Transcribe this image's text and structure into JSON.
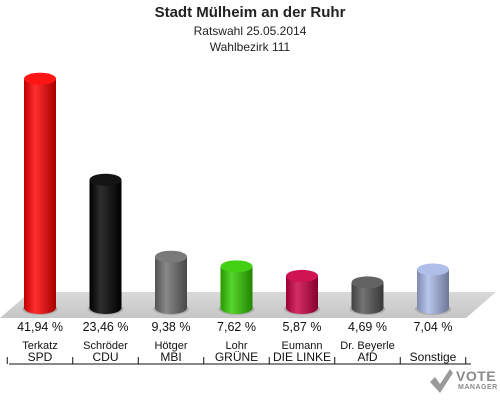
{
  "header": {
    "title": "Stadt Mülheim an der Ruhr",
    "subtitle": "Ratswahl 25.05.2014",
    "district": "Wahlbezirk 111"
  },
  "logo": {
    "line1": "VOTE",
    "line2": "MANAGER"
  },
  "chart_data": {
    "type": "bar",
    "title": "Stadt Mülheim an der Ruhr",
    "subtitle": "Ratswahl 25.05.2014 / Wahlbezirk 111",
    "ylim": [
      0,
      45
    ],
    "grid": false,
    "legend": "none",
    "categories": [
      "SPD",
      "CDU",
      "MBI",
      "GRÜNE",
      "DIE LINKE",
      "AfD",
      "Sonstige"
    ],
    "candidates": [
      "Terkatz",
      "Schröder",
      "Hötger",
      "Lohr",
      "Eumann",
      "Dr. Beyerle",
      ""
    ],
    "values": [
      41.94,
      23.46,
      9.38,
      7.62,
      5.87,
      4.69,
      7.04
    ],
    "value_labels": [
      "41,94 %",
      "23,46 %",
      "9,38 %",
      "7,62 %",
      "5,87 %",
      "4,69 %",
      "7,04 %"
    ],
    "colors": [
      "#ff0000",
      "#000000",
      "#6e6e6e",
      "#33cc00",
      "#cc0044",
      "#555555",
      "#a9b8e8"
    ]
  }
}
